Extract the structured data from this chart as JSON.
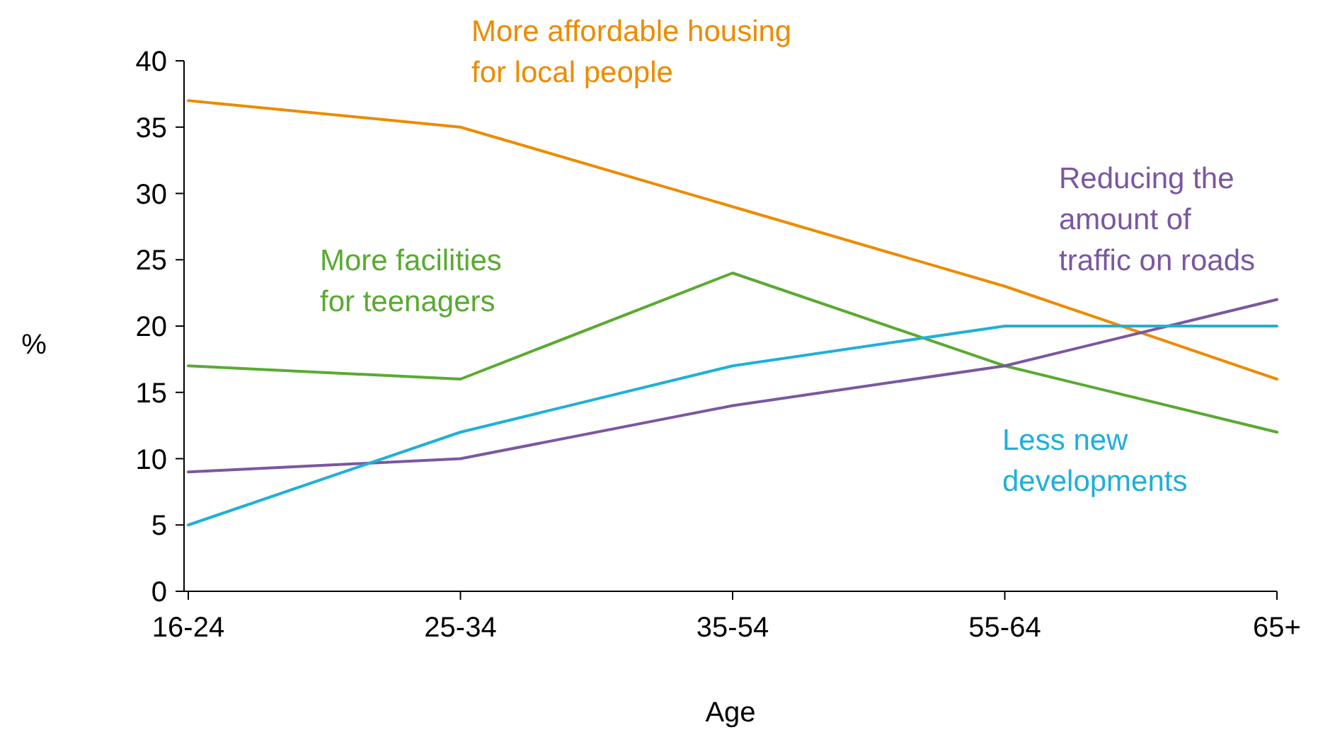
{
  "chart_data": {
    "type": "line",
    "xlabel": "Age",
    "ylabel": "%",
    "categories": [
      "16-24",
      "25-34",
      "35-54",
      "55-64",
      "65+"
    ],
    "ylim": [
      0,
      40
    ],
    "yticks": [
      0,
      5,
      10,
      15,
      20,
      25,
      30,
      35,
      40
    ],
    "grid": false,
    "marker": "none",
    "line_style": "solid",
    "series": [
      {
        "name": "More affordable housing\nfor local people",
        "color": "#ed8b00",
        "values": [
          37,
          35,
          29,
          23,
          16
        ]
      },
      {
        "name": "More facilities\nfor teenagers",
        "color": "#5aaa32",
        "values": [
          17,
          16,
          24,
          17,
          12
        ]
      },
      {
        "name": "Reducing the\namount of\ntraffic on roads",
        "color": "#7b57a0",
        "values": [
          9,
          10,
          14,
          17,
          22
        ]
      },
      {
        "name": "Less new\ndevelopments",
        "color": "#1fb0d8",
        "values": [
          5,
          12,
          17,
          20,
          20
        ]
      }
    ]
  }
}
